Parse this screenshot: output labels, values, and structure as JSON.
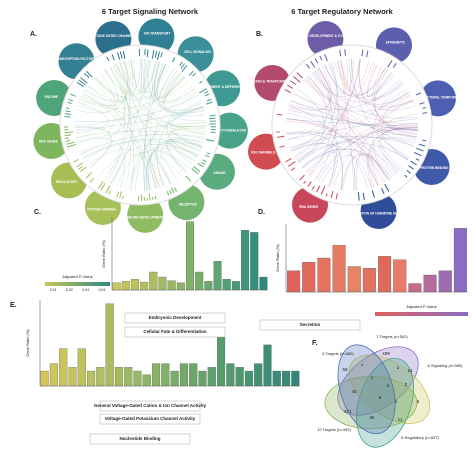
{
  "network_a": {
    "title": "6 Target Signaling Network",
    "label": "A.",
    "petals": [
      {
        "label": "VOLTAGE GATED CHANNELS",
        "color": "#2d6f8f"
      },
      {
        "label": "ION TRANSPORT",
        "color": "#2f7f95"
      },
      {
        "label": "CELL SIGNALING",
        "color": "#3a8f99"
      },
      {
        "label": "DEVELOPMENT & DIFFERENTIATION",
        "color": "#3f9a93"
      },
      {
        "label": "CYTOSKELETON",
        "color": "#49a389"
      },
      {
        "label": "KINASE",
        "color": "#5aab7d"
      },
      {
        "label": "RECEPTOR",
        "color": "#74b46f"
      },
      {
        "label": "NEURO-DEVELOPMENT",
        "color": "#8fbb62"
      },
      {
        "label": "PROTEIN BINDING",
        "color": "#a8c05a"
      },
      {
        "label": "REGULATORY",
        "color": "#a9bd55"
      },
      {
        "label": "RNA GENES",
        "color": "#7eb55f"
      },
      {
        "label": "ENZYME",
        "color": "#4fa57a"
      },
      {
        "label": "TRANSCRIPTION FACTORS",
        "color": "#357f92"
      }
    ]
  },
  "network_b": {
    "title": "6 Target  Regulatory Network",
    "label": "B.",
    "petals": [
      {
        "label": "CELL DEVELOPMENT & CYCLE",
        "color": "#6d5ca8"
      },
      {
        "label": "EPIGENETIC",
        "color": "#5c5fae"
      },
      {
        "label": "STRUCTURAL COMPONENTS",
        "color": "#4d5fb0"
      },
      {
        "label": "PROTEIN BINDING",
        "color": "#3e5aa8"
      },
      {
        "label": "REGULATION OF HORMONE SIGNALING",
        "color": "#2f4d99"
      },
      {
        "label": "RNA GENES",
        "color": "#c9475a"
      },
      {
        "label": "ION CHANNELS",
        "color": "#d04b52"
      },
      {
        "label": "VESICLE TRAFFICKING",
        "color": "#b24a6e"
      }
    ]
  },
  "chart_data": [
    {
      "type": "bar",
      "label": "C.",
      "y_label": "Gene Ratio (%)",
      "values": [
        1,
        1.2,
        1.5,
        1.1,
        2.5,
        1.8,
        1.3,
        1,
        9.5,
        2.5,
        1.2,
        4,
        1.5,
        1.2,
        8.3,
        8,
        1.8
      ],
      "colors": [
        "#c9c65b",
        "#c3c55c",
        "#bcc35d",
        "#b4c05e",
        "#abbe60",
        "#a2bb62",
        "#98b864",
        "#8db566",
        "#82b268",
        "#77ae6b",
        "#6baa6e",
        "#5fa571",
        "#53a074",
        "#489b77",
        "#3d957a",
        "#33907c",
        "#2b8a7e"
      ],
      "ylim": [
        0,
        10
      ],
      "legend_title": "Adjusted P-Value",
      "legend_ticks": [
        0.01,
        0.02,
        0.03,
        0.04
      ],
      "legend_colors": [
        "#c9c65b",
        "#2b8a7e"
      ],
      "annotations": [
        "Embryonic Development",
        "Cellular Fate & Differentiation"
      ]
    },
    {
      "type": "bar",
      "label": "D.",
      "y_label": "Gene Ratio (%)",
      "values": [
        2.5,
        3.5,
        4,
        5.5,
        3,
        2.8,
        4.2,
        3.8,
        1,
        2,
        2.5,
        7.5
      ],
      "colors": [
        "#e0605a",
        "#e2685c",
        "#e4725e",
        "#e57c62",
        "#e68565",
        "#e27260",
        "#df6a5c",
        "#e87a6a",
        "#c96a8a",
        "#b56c9c",
        "#9d6cb0",
        "#8a6cc4"
      ],
      "ylim": [
        0,
        8
      ],
      "legend_title": "Adjusted P-Value",
      "legend_colors": [
        "#e0605a",
        "#8a6cc4"
      ],
      "annotations": [
        "Secretion"
      ]
    },
    {
      "type": "bar",
      "label": "E.",
      "y_label": "Gene Ratio (%)",
      "values": [
        2,
        3,
        5,
        2.5,
        5,
        2,
        2.5,
        11,
        2.5,
        2.5,
        2,
        1.5,
        3,
        3,
        2,
        3,
        3,
        2,
        2.5,
        6.5,
        3,
        2.5,
        2,
        3,
        5.5,
        2,
        2,
        2
      ],
      "colors": [
        "#d3c75a",
        "#cec65b",
        "#c9c55c",
        "#c4c45d",
        "#bec35e",
        "#b8c15f",
        "#b2bf60",
        "#acbd61",
        "#a5bb62",
        "#9eb963",
        "#97b764",
        "#90b565",
        "#89b266",
        "#82b067",
        "#7bad68",
        "#73aa69",
        "#6ca76a",
        "#65a46b",
        "#5ea16c",
        "#579e6d",
        "#519b6e",
        "#4b986f",
        "#459570",
        "#409272",
        "#3c8f74",
        "#398c76",
        "#378978",
        "#35867a"
      ],
      "ylim": [
        0,
        11.5
      ],
      "annotations": [
        "General Voltage-Gated Cation & Ion Channel Activity",
        "Voltage-Gated Potassium Channel Activity",
        "Nucleotide Binding"
      ]
    }
  ],
  "venn": {
    "label": "F.",
    "sets": [
      {
        "name": "5 Targets (n=380)",
        "color": "#8a6cc4"
      },
      {
        "name": "7 Targets (n=502)",
        "color": "#c9c65b"
      },
      {
        "name": "6 Signaling (n=385)",
        "color": "#3fa08f"
      },
      {
        "name": "6 Regulatory (n=527)",
        "color": "#8cb35a"
      },
      {
        "name": "12 Targets (n=492)",
        "color": "#4a6fb8"
      }
    ],
    "counts": [
      409,
      58,
      7,
      1,
      14,
      2,
      2,
      4,
      45,
      6,
      1,
      571,
      36,
      11,
      5
    ]
  }
}
